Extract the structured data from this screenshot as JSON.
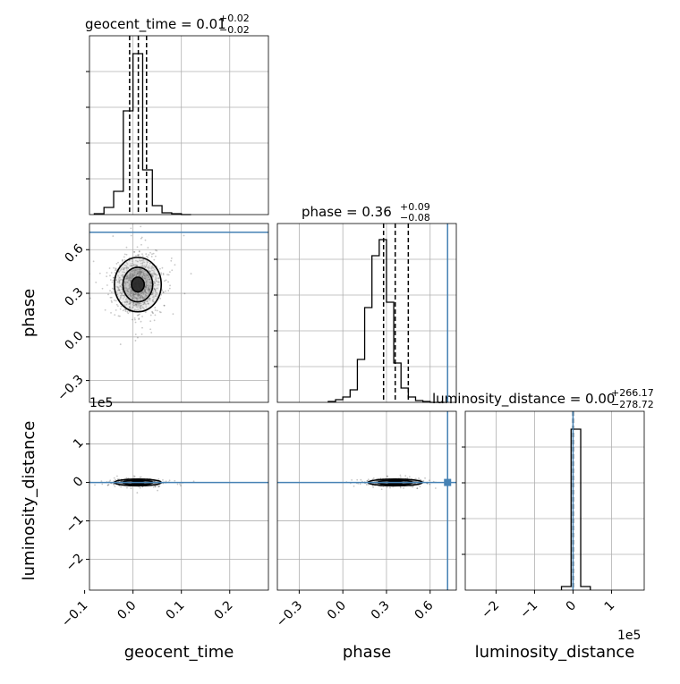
{
  "chart_data": [
    {
      "type": "histogram",
      "panel": "geocent_time-marginal",
      "title": {
        "text": "geocent_time = 0.01",
        "upper": "+0.02",
        "lower": "−0.02"
      },
      "x_range": [
        -0.09,
        0.28
      ],
      "bin_edges": [
        -0.08,
        -0.06,
        -0.04,
        -0.02,
        0.0,
        0.02,
        0.04,
        0.06,
        0.08,
        0.1,
        0.12
      ],
      "counts": [
        0.005,
        0.04,
        0.13,
        0.58,
        0.9,
        0.25,
        0.05,
        0.01,
        0.005,
        0.0
      ],
      "quantile_lines": [
        -0.007,
        0.011,
        0.028
      ]
    },
    {
      "type": "histogram",
      "panel": "phase-marginal",
      "title": {
        "text": "phase = 0.36",
        "upper": "+0.09",
        "lower": "−0.08"
      },
      "x_range": [
        -0.45,
        0.78
      ],
      "bin_edges": [
        -0.1,
        -0.05,
        0.0,
        0.05,
        0.1,
        0.15,
        0.2,
        0.25,
        0.3,
        0.35,
        0.4,
        0.45,
        0.5,
        0.55,
        0.6,
        0.65,
        0.7
      ],
      "counts": [
        0.005,
        0.015,
        0.03,
        0.07,
        0.24,
        0.53,
        0.82,
        0.91,
        0.56,
        0.22,
        0.08,
        0.03,
        0.01,
        0.005,
        0.0,
        0.0
      ],
      "quantile_lines": [
        0.28,
        0.36,
        0.45
      ],
      "truth_line": 0.72
    },
    {
      "type": "histogram",
      "panel": "luminosity_distance-marginal",
      "title": {
        "text": "luminosity_distance = 0.00",
        "upper": "+266.17",
        "lower": "−278.72"
      },
      "x_range": [
        -280000,
        185000
      ],
      "bin_edges": [
        -30000,
        -5000,
        20000,
        45000
      ],
      "counts": [
        0.02,
        0.9,
        0.02
      ],
      "quantile_lines": [
        -280,
        0,
        266
      ],
      "truth_line": 0
    },
    {
      "type": "scatter",
      "panel": "phase-vs-geocent_time",
      "x_range": [
        -0.09,
        0.28
      ],
      "y_range": [
        -0.45,
        0.78
      ],
      "center": [
        0.01,
        0.36
      ],
      "spread": [
        0.022,
        0.085
      ],
      "points": 1400,
      "truth_y": 0.72
    },
    {
      "type": "scatter",
      "panel": "luminosity_distance-vs-geocent_time",
      "x_range": [
        -0.09,
        0.28
      ],
      "y_range": [
        -280000,
        185000
      ],
      "center": [
        0.01,
        0
      ],
      "spread": [
        0.022,
        4000
      ],
      "points": 700,
      "truth_y": 0
    },
    {
      "type": "scatter",
      "panel": "luminosity_distance-vs-phase",
      "x_range": [
        -0.45,
        0.78
      ],
      "y_range": [
        -280000,
        185000
      ],
      "center": [
        0.36,
        0
      ],
      "spread": [
        0.085,
        4000
      ],
      "points": 700,
      "truth_x": 0.72,
      "truth_y": 0
    }
  ],
  "axes": {
    "geocent_time": {
      "label": "geocent_time",
      "ticks": [
        -0.1,
        0.0,
        0.1,
        0.2
      ],
      "tick_labels": [
        "−0.1",
        "0.0",
        "0.1",
        "0.2"
      ]
    },
    "phase": {
      "label": "phase",
      "ticks": [
        -0.3,
        0.0,
        0.3,
        0.6
      ],
      "tick_labels": [
        "−0.3",
        "0.0",
        "0.3",
        "0.6"
      ]
    },
    "luminosity_distance": {
      "label": "luminosity_distance",
      "ticks": [
        -200000,
        -100000,
        0,
        100000
      ],
      "tick_labels": [
        "−2",
        "−1",
        "0",
        "1"
      ],
      "offset": "1e5"
    }
  },
  "grid": true,
  "colors": {
    "truth": "#4682b4",
    "hist": "#000000",
    "points": "#000000"
  }
}
